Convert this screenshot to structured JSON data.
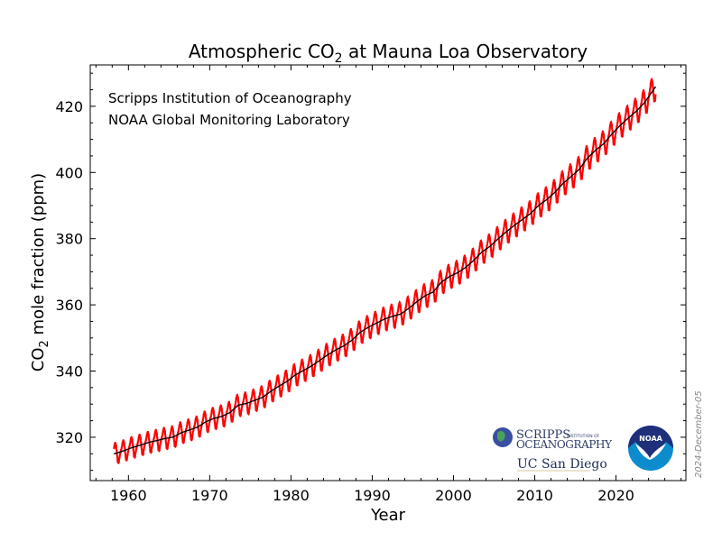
{
  "chart_data": {
    "type": "line",
    "title": "Atmospheric CO",
    "title_sub": "2",
    "title_rest": " at Mauna Loa Observatory",
    "xlabel": "Year",
    "ylabel_pre": "CO",
    "ylabel_sub": "2",
    "ylabel_rest": " mole fraction (ppm)",
    "xlim": [
      1955.3,
      2028.6
    ],
    "ylim": [
      306.9,
      432.5
    ],
    "xticks": [
      1960,
      1970,
      1980,
      1990,
      2000,
      2010,
      2020
    ],
    "yticks": [
      320,
      340,
      360,
      380,
      400,
      420
    ],
    "grid": false,
    "annotations": [
      "Scripps Institution of Oceanography",
      "NOAA Global Monitoring Laboratory"
    ],
    "date_stamp": "2024-December-05",
    "x_start": 1958.2,
    "x_end": 2024.9,
    "series": [
      {
        "role": "monthly",
        "color": "#ff0000"
      },
      {
        "role": "trend",
        "color": "#000000"
      }
    ],
    "annual_mean_years": [
      1958,
      1959,
      1960,
      1961,
      1962,
      1963,
      1964,
      1965,
      1966,
      1967,
      1968,
      1969,
      1970,
      1971,
      1972,
      1973,
      1974,
      1975,
      1976,
      1977,
      1978,
      1979,
      1980,
      1981,
      1982,
      1983,
      1984,
      1985,
      1986,
      1987,
      1988,
      1989,
      1990,
      1991,
      1992,
      1993,
      1994,
      1995,
      1996,
      1997,
      1998,
      1999,
      2000,
      2001,
      2002,
      2003,
      2004,
      2005,
      2006,
      2007,
      2008,
      2009,
      2010,
      2011,
      2012,
      2013,
      2014,
      2015,
      2016,
      2017,
      2018,
      2019,
      2020,
      2021,
      2022,
      2023,
      2024
    ],
    "annual_mean_ppm": [
      315.2,
      315.98,
      316.91,
      317.64,
      318.45,
      318.99,
      319.62,
      320.04,
      321.37,
      322.18,
      323.05,
      324.62,
      325.68,
      326.32,
      327.46,
      329.68,
      330.19,
      331.12,
      332.03,
      333.84,
      335.41,
      336.84,
      338.76,
      340.12,
      341.48,
      343.15,
      344.87,
      346.35,
      347.61,
      349.31,
      351.69,
      353.2,
      354.45,
      355.7,
      356.54,
      357.21,
      358.96,
      360.97,
      362.74,
      363.88,
      366.84,
      368.54,
      369.71,
      371.32,
      373.45,
      375.98,
      377.7,
      379.98,
      382.09,
      384.02,
      385.83,
      387.64,
      390.1,
      391.85,
      394.06,
      396.74,
      398.81,
      401.01,
      404.41,
      406.76,
      408.72,
      411.65,
      414.21,
      416.41,
      418.53,
      421.08,
      424.6
    ],
    "seasonal_cycle_ppm": [
      0.0,
      0.7,
      1.5,
      2.7,
      3.2,
      2.5,
      0.9,
      -1.2,
      -3.0,
      -3.2,
      -1.9,
      -0.8
    ]
  },
  "logos": {
    "scripps": "SCRIPPS INSTITUTION OF OCEANOGRAPHY",
    "ucsd": "UC San Diego",
    "noaa": "NOAA"
  }
}
